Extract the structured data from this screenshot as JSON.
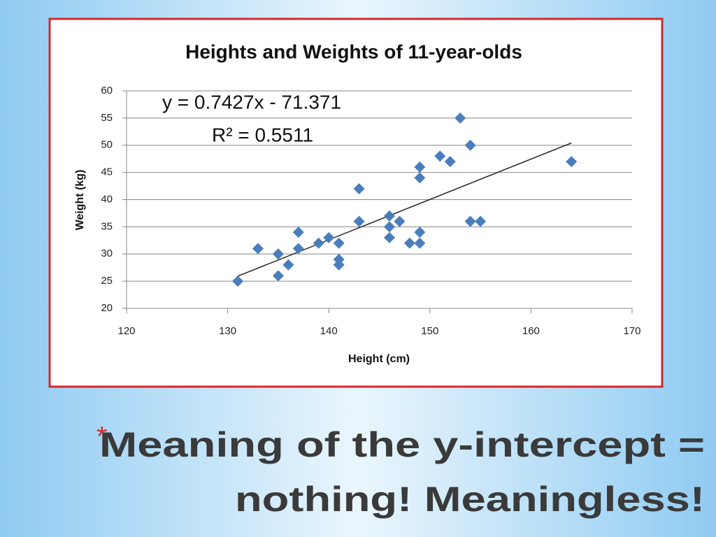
{
  "chart_data": {
    "type": "scatter",
    "title": "Heights and Weights of 11-year-olds",
    "x_label": "Height (cm)",
    "y_label": "Weight (kg)",
    "x": [
      131,
      133,
      135,
      135,
      136,
      137,
      137,
      139,
      140,
      141,
      141,
      141,
      143,
      143,
      146,
      146,
      146,
      147,
      148,
      149,
      149,
      149,
      149,
      151,
      152,
      153,
      154,
      154,
      155,
      164
    ],
    "values": [
      25,
      31,
      30,
      26,
      28,
      34,
      31,
      32,
      33,
      32,
      29,
      28,
      42,
      36,
      37,
      35,
      33,
      36,
      32,
      46,
      44,
      34,
      32,
      48,
      47,
      55,
      50,
      36,
      36,
      47
    ],
    "color": "#4a7ebb",
    "trendline": {
      "x": [
        131,
        164
      ],
      "y": [
        25.92,
        50.43
      ],
      "color": "#222222"
    },
    "annotations": [
      "y = 0.7427x - 71.371",
      "R² = 0.5511"
    ],
    "xlim": [
      120,
      170
    ],
    "xticks": [
      120,
      130,
      140,
      150,
      160,
      170
    ],
    "ylim": [
      20,
      60
    ],
    "yticks": [
      20,
      25,
      30,
      35,
      40,
      45,
      50,
      55,
      60
    ],
    "grid": true
  },
  "slide_title": {
    "bullet": "*",
    "lines": [
      "Meaning of the y-intercept =",
      "nothing!  Meaningless!"
    ]
  }
}
